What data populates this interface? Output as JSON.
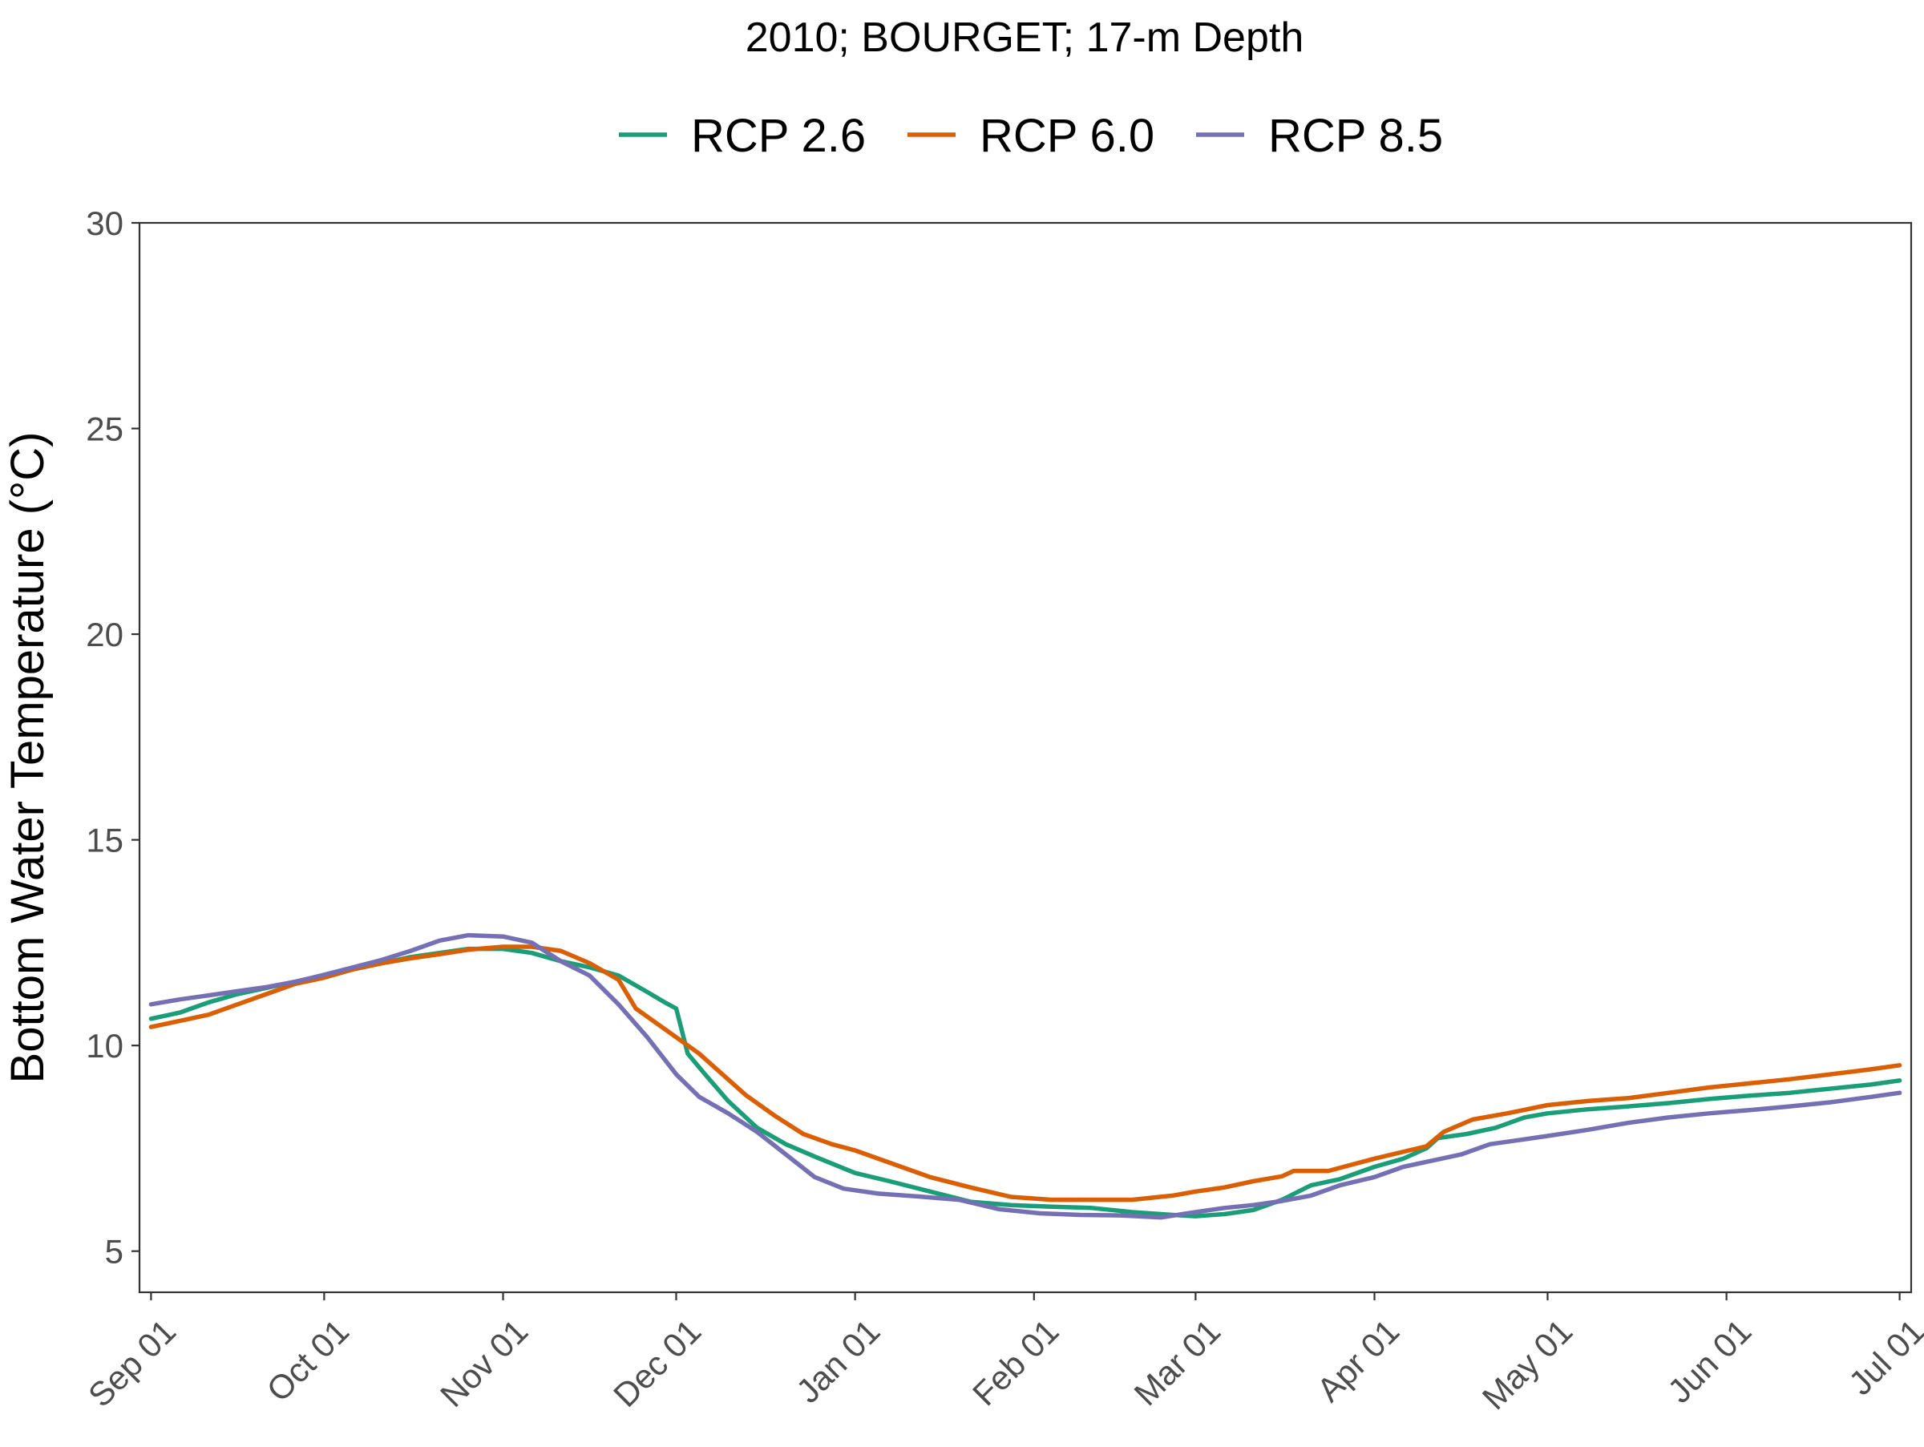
{
  "chart_data": {
    "type": "line",
    "title": "2010; BOURGET; 17-m Depth",
    "ylabel": "Bottom Water Temperature (°C)",
    "xlabel": "",
    "ylim": [
      4,
      30
    ],
    "yticks": [
      5,
      10,
      15,
      20,
      25,
      30
    ],
    "xlim": [
      "2010-08-30",
      "2011-07-03"
    ],
    "xticks": [
      {
        "date": "2010-09-01",
        "label": "Sep 01"
      },
      {
        "date": "2010-10-01",
        "label": "Oct 01"
      },
      {
        "date": "2010-11-01",
        "label": "Nov 01"
      },
      {
        "date": "2010-12-01",
        "label": "Dec 01"
      },
      {
        "date": "2011-01-01",
        "label": "Jan 01"
      },
      {
        "date": "2011-02-01",
        "label": "Feb 01"
      },
      {
        "date": "2011-03-01",
        "label": "Mar 01"
      },
      {
        "date": "2011-04-01",
        "label": "Apr 01"
      },
      {
        "date": "2011-05-01",
        "label": "May 01"
      },
      {
        "date": "2011-06-01",
        "label": "Jun 01"
      },
      {
        "date": "2011-07-01",
        "label": "Jul 01"
      }
    ],
    "grid": false,
    "legend_position": "top",
    "series": [
      {
        "name": "RCP 2.6",
        "color": "#1b9e77",
        "points": [
          [
            "2010-09-01",
            10.65
          ],
          [
            "2010-09-06",
            10.8
          ],
          [
            "2010-09-11",
            11.05
          ],
          [
            "2010-09-16",
            11.25
          ],
          [
            "2010-09-21",
            11.4
          ],
          [
            "2010-09-26",
            11.55
          ],
          [
            "2010-10-01",
            11.7
          ],
          [
            "2010-10-06",
            11.85
          ],
          [
            "2010-10-11",
            12.0
          ],
          [
            "2010-10-16",
            12.15
          ],
          [
            "2010-10-21",
            12.25
          ],
          [
            "2010-10-26",
            12.35
          ],
          [
            "2010-11-01",
            12.35
          ],
          [
            "2010-11-06",
            12.25
          ],
          [
            "2010-11-11",
            12.05
          ],
          [
            "2010-11-16",
            11.9
          ],
          [
            "2010-11-21",
            11.7
          ],
          [
            "2010-11-26",
            11.3
          ],
          [
            "2010-11-29",
            11.05
          ],
          [
            "2010-12-01",
            10.9
          ],
          [
            "2010-12-03",
            9.8
          ],
          [
            "2010-12-06",
            9.3
          ],
          [
            "2010-12-10",
            8.65
          ],
          [
            "2010-12-15",
            8.0
          ],
          [
            "2010-12-20",
            7.6
          ],
          [
            "2010-12-25",
            7.3
          ],
          [
            "2011-01-01",
            6.9
          ],
          [
            "2011-01-07",
            6.7
          ],
          [
            "2011-01-14",
            6.45
          ],
          [
            "2011-01-21",
            6.2
          ],
          [
            "2011-01-28",
            6.12
          ],
          [
            "2011-02-04",
            6.08
          ],
          [
            "2011-02-11",
            6.05
          ],
          [
            "2011-02-18",
            5.95
          ],
          [
            "2011-02-25",
            5.88
          ],
          [
            "2011-03-01",
            5.85
          ],
          [
            "2011-03-06",
            5.9
          ],
          [
            "2011-03-11",
            6.0
          ],
          [
            "2011-03-16",
            6.25
          ],
          [
            "2011-03-21",
            6.6
          ],
          [
            "2011-03-26",
            6.75
          ],
          [
            "2011-04-01",
            7.05
          ],
          [
            "2011-04-06",
            7.25
          ],
          [
            "2011-04-10",
            7.5
          ],
          [
            "2011-04-12",
            7.75
          ],
          [
            "2011-04-17",
            7.85
          ],
          [
            "2011-04-22",
            8.0
          ],
          [
            "2011-04-27",
            8.25
          ],
          [
            "2011-05-01",
            8.35
          ],
          [
            "2011-05-08",
            8.45
          ],
          [
            "2011-05-15",
            8.52
          ],
          [
            "2011-05-22",
            8.6
          ],
          [
            "2011-05-29",
            8.7
          ],
          [
            "2011-06-05",
            8.78
          ],
          [
            "2011-06-12",
            8.85
          ],
          [
            "2011-06-19",
            8.95
          ],
          [
            "2011-06-26",
            9.05
          ],
          [
            "2011-07-01",
            9.15
          ]
        ]
      },
      {
        "name": "RCP 6.0",
        "color": "#d95f02",
        "points": [
          [
            "2010-09-01",
            10.45
          ],
          [
            "2010-09-06",
            10.6
          ],
          [
            "2010-09-11",
            10.75
          ],
          [
            "2010-09-16",
            11.0
          ],
          [
            "2010-09-21",
            11.25
          ],
          [
            "2010-09-26",
            11.5
          ],
          [
            "2010-10-01",
            11.65
          ],
          [
            "2010-10-06",
            11.85
          ],
          [
            "2010-10-11",
            12.0
          ],
          [
            "2010-10-16",
            12.12
          ],
          [
            "2010-10-21",
            12.22
          ],
          [
            "2010-10-26",
            12.33
          ],
          [
            "2010-11-01",
            12.4
          ],
          [
            "2010-11-06",
            12.4
          ],
          [
            "2010-11-11",
            12.3
          ],
          [
            "2010-11-16",
            12.0
          ],
          [
            "2010-11-21",
            11.6
          ],
          [
            "2010-11-24",
            10.9
          ],
          [
            "2010-11-27",
            10.6
          ],
          [
            "2010-12-01",
            10.2
          ],
          [
            "2010-12-05",
            9.8
          ],
          [
            "2010-12-09",
            9.3
          ],
          [
            "2010-12-13",
            8.8
          ],
          [
            "2010-12-18",
            8.3
          ],
          [
            "2010-12-23",
            7.85
          ],
          [
            "2010-12-28",
            7.6
          ],
          [
            "2011-01-01",
            7.45
          ],
          [
            "2011-01-07",
            7.15
          ],
          [
            "2011-01-14",
            6.8
          ],
          [
            "2011-01-21",
            6.55
          ],
          [
            "2011-01-28",
            6.32
          ],
          [
            "2011-02-04",
            6.25
          ],
          [
            "2011-02-11",
            6.25
          ],
          [
            "2011-02-18",
            6.25
          ],
          [
            "2011-02-25",
            6.35
          ],
          [
            "2011-03-01",
            6.45
          ],
          [
            "2011-03-06",
            6.55
          ],
          [
            "2011-03-11",
            6.7
          ],
          [
            "2011-03-16",
            6.82
          ],
          [
            "2011-03-18",
            6.95
          ],
          [
            "2011-03-24",
            6.95
          ],
          [
            "2011-04-01",
            7.25
          ],
          [
            "2011-04-07",
            7.45
          ],
          [
            "2011-04-10",
            7.55
          ],
          [
            "2011-04-13",
            7.9
          ],
          [
            "2011-04-18",
            8.2
          ],
          [
            "2011-04-24",
            8.35
          ],
          [
            "2011-05-01",
            8.55
          ],
          [
            "2011-05-08",
            8.65
          ],
          [
            "2011-05-15",
            8.72
          ],
          [
            "2011-05-22",
            8.85
          ],
          [
            "2011-05-29",
            8.98
          ],
          [
            "2011-06-05",
            9.08
          ],
          [
            "2011-06-12",
            9.18
          ],
          [
            "2011-06-19",
            9.3
          ],
          [
            "2011-06-26",
            9.42
          ],
          [
            "2011-07-01",
            9.52
          ]
        ]
      },
      {
        "name": "RCP 8.5",
        "color": "#7570b3",
        "points": [
          [
            "2010-09-01",
            11.0
          ],
          [
            "2010-09-06",
            11.12
          ],
          [
            "2010-09-11",
            11.22
          ],
          [
            "2010-09-16",
            11.32
          ],
          [
            "2010-09-21",
            11.42
          ],
          [
            "2010-09-26",
            11.55
          ],
          [
            "2010-10-01",
            11.72
          ],
          [
            "2010-10-06",
            11.9
          ],
          [
            "2010-10-11",
            12.08
          ],
          [
            "2010-10-16",
            12.3
          ],
          [
            "2010-10-21",
            12.55
          ],
          [
            "2010-10-26",
            12.68
          ],
          [
            "2010-11-01",
            12.65
          ],
          [
            "2010-11-06",
            12.5
          ],
          [
            "2010-11-11",
            12.05
          ],
          [
            "2010-11-16",
            11.7
          ],
          [
            "2010-11-21",
            11.0
          ],
          [
            "2010-11-26",
            10.2
          ],
          [
            "2010-12-01",
            9.3
          ],
          [
            "2010-12-05",
            8.75
          ],
          [
            "2010-12-10",
            8.35
          ],
          [
            "2010-12-15",
            7.9
          ],
          [
            "2010-12-20",
            7.35
          ],
          [
            "2010-12-25",
            6.8
          ],
          [
            "2010-12-30",
            6.52
          ],
          [
            "2011-01-05",
            6.4
          ],
          [
            "2011-01-12",
            6.33
          ],
          [
            "2011-01-19",
            6.25
          ],
          [
            "2011-01-26",
            6.02
          ],
          [
            "2011-02-02",
            5.92
          ],
          [
            "2011-02-09",
            5.88
          ],
          [
            "2011-02-16",
            5.87
          ],
          [
            "2011-02-23",
            5.82
          ],
          [
            "2011-03-01",
            5.95
          ],
          [
            "2011-03-06",
            6.05
          ],
          [
            "2011-03-11",
            6.12
          ],
          [
            "2011-03-16",
            6.22
          ],
          [
            "2011-03-21",
            6.35
          ],
          [
            "2011-03-26",
            6.6
          ],
          [
            "2011-04-01",
            6.8
          ],
          [
            "2011-04-06",
            7.05
          ],
          [
            "2011-04-11",
            7.2
          ],
          [
            "2011-04-16",
            7.35
          ],
          [
            "2011-04-21",
            7.6
          ],
          [
            "2011-04-26",
            7.7
          ],
          [
            "2011-05-01",
            7.8
          ],
          [
            "2011-05-08",
            7.95
          ],
          [
            "2011-05-15",
            8.12
          ],
          [
            "2011-05-22",
            8.25
          ],
          [
            "2011-05-29",
            8.35
          ],
          [
            "2011-06-05",
            8.43
          ],
          [
            "2011-06-12",
            8.52
          ],
          [
            "2011-06-19",
            8.62
          ],
          [
            "2011-06-26",
            8.75
          ],
          [
            "2011-07-01",
            8.85
          ]
        ]
      }
    ]
  }
}
